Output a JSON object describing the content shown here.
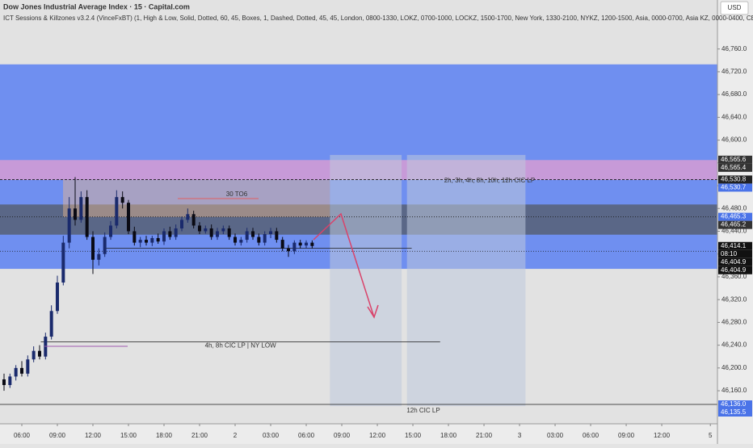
{
  "chart_data": {
    "type": "candlestick",
    "title": "Dow Jones Industrial Average Index · 15 · Capital.com",
    "subtitle": "ICT Sessions & Killzones v3.2.4 (VinceFxBT) (1, High & Low, Solid, Dotted, 60, 45, Boxes, 1, Dashed, Dotted, 45, 45, London, 0800-1330, LOKZ, 0700-1000, LOCKZ, 1500-1700, New York, 1330-2100, NYKZ, 1200-1500, Asia, 0000-0700, Asia KZ, 0000-0400, CBDR",
    "currency": "USD",
    "x": [
      -1.5,
      -1,
      -0.5,
      0,
      0.5,
      1,
      1.5,
      2,
      2.5,
      3,
      3.5,
      4,
      4.5,
      5,
      5.5,
      6,
      6.5,
      7,
      7.5,
      8,
      8.5,
      9,
      9.5,
      10,
      10.5,
      11,
      11.5,
      12,
      12.5,
      13,
      13.5,
      14,
      14.5,
      15,
      15.5,
      16,
      16.5,
      17,
      17.5,
      18,
      18.5,
      19,
      19.5,
      20,
      20.5,
      21,
      21.5,
      22,
      22.5,
      23,
      23.5,
      24,
      24.5
    ],
    "open": [
      46180,
      46170,
      46185,
      46200,
      46190,
      46215,
      46230,
      46220,
      46255,
      46300,
      46350,
      46420,
      46480,
      46460,
      46500,
      46430,
      46390,
      46400,
      46430,
      46450,
      46500,
      46490,
      46440,
      46420,
      46425,
      46420,
      46428,
      46422,
      46440,
      46430,
      46445,
      46460,
      46470,
      46450,
      46440,
      46445,
      46430,
      46440,
      46445,
      46430,
      46420,
      46425,
      46440,
      46430,
      46420,
      46435,
      46440,
      46425,
      46410,
      46405,
      46420,
      46415,
      46420
    ],
    "high": [
      46190,
      46190,
      46205,
      46212,
      46222,
      46238,
      46240,
      46262,
      46310,
      46362,
      46432,
      46500,
      46535,
      46510,
      46512,
      46440,
      46410,
      46438,
      46458,
      46512,
      46510,
      46495,
      46448,
      46430,
      46432,
      46432,
      46436,
      46445,
      46448,
      46452,
      46466,
      46480,
      46476,
      46456,
      46450,
      46452,
      46446,
      46450,
      46450,
      46436,
      46430,
      46446,
      46446,
      46436,
      46440,
      46446,
      46446,
      46430,
      46416,
      46424,
      46425,
      46424,
      46424
    ],
    "low": [
      46160,
      46165,
      46178,
      46185,
      46185,
      46210,
      46215,
      46215,
      46250,
      46295,
      46345,
      46410,
      46450,
      46455,
      46425,
      46365,
      46380,
      46395,
      46425,
      46445,
      46480,
      46435,
      46415,
      46412,
      46415,
      46414,
      46418,
      46416,
      46425,
      46425,
      46440,
      46455,
      46445,
      46435,
      46436,
      46425,
      46425,
      46435,
      46425,
      46415,
      46415,
      46420,
      46425,
      46415,
      46415,
      46428,
      46420,
      46405,
      46395,
      46400,
      46410,
      46410,
      46410
    ],
    "close": [
      46170,
      46185,
      46200,
      46190,
      46215,
      46230,
      46220,
      46255,
      46300,
      46350,
      46420,
      46480,
      46460,
      46500,
      46430,
      46390,
      46400,
      46430,
      46450,
      46500,
      46490,
      46440,
      46420,
      46425,
      46420,
      46428,
      46422,
      46440,
      46430,
      46445,
      46460,
      46470,
      46450,
      46440,
      46445,
      46430,
      46440,
      46445,
      46430,
      46420,
      46425,
      46440,
      46430,
      46420,
      46435,
      46440,
      46425,
      46410,
      46405,
      46420,
      46415,
      46420,
      46414.1
    ],
    "up_color": "#1a2a6c",
    "down_color": "#0a0a14",
    "xlim": [
      -1.84,
      58.7
    ],
    "xticks": [
      {
        "value": 0,
        "label": "06:00"
      },
      {
        "value": 3,
        "label": "09:00"
      },
      {
        "value": 6,
        "label": "12:00"
      },
      {
        "value": 9,
        "label": "15:00"
      },
      {
        "value": 12,
        "label": "18:00"
      },
      {
        "value": 15,
        "label": "21:00"
      },
      {
        "value": 18,
        "label": "2"
      },
      {
        "value": 21,
        "label": "03:00"
      },
      {
        "value": 24,
        "label": "06:00"
      },
      {
        "value": 27,
        "label": "09:00"
      },
      {
        "value": 30,
        "label": "12:00"
      },
      {
        "value": 33,
        "label": "15:00"
      },
      {
        "value": 36,
        "label": "18:00"
      },
      {
        "value": 39,
        "label": "21:00"
      },
      {
        "value": 42,
        "label": "3"
      },
      {
        "value": 45,
        "label": "03:00"
      },
      {
        "value": 48,
        "label": "06:00"
      },
      {
        "value": 51,
        "label": "09:00"
      },
      {
        "value": 54,
        "label": "12:00"
      },
      {
        "value": 58.1,
        "label": "5"
      }
    ],
    "ylim": [
      46102,
      46846
    ],
    "yticks": [
      {
        "value": 46160,
        "label": "46,160.0"
      },
      {
        "value": 46200,
        "label": "46,200.0"
      },
      {
        "value": 46240,
        "label": "46,240.0"
      },
      {
        "value": 46280,
        "label": "46,280.0"
      },
      {
        "value": 46320,
        "label": "46,320.0"
      },
      {
        "value": 46360,
        "label": "46,360.0"
      },
      {
        "value": 46400,
        "label": "46,400.0"
      },
      {
        "value": 46440,
        "label": "46,440.0"
      },
      {
        "value": 46480,
        "label": "46,480.0"
      },
      {
        "value": 46520,
        "label": "46,520.0"
      },
      {
        "value": 46560,
        "label": "46,560.0"
      },
      {
        "value": 46600,
        "label": "46,600.0"
      },
      {
        "value": 46640,
        "label": "46,640.0"
      },
      {
        "value": 46680,
        "label": "46,680.0"
      },
      {
        "value": 46720,
        "label": "46,720.0"
      },
      {
        "value": 46760,
        "label": "46,760.0"
      }
    ],
    "bands": [
      {
        "from": 46374,
        "to": 46733,
        "color": "#6f8ff0"
      },
      {
        "from": 46530,
        "to": 46565,
        "color": "#c79ad8"
      },
      {
        "from": 46434,
        "to": 46487,
        "color": "#5a6787"
      }
    ],
    "boxes": [
      {
        "x": [
          3.48,
          26.0
        ],
        "from": 46465,
        "to": 46530,
        "color": "rgba(235,185,140,0.45)"
      },
      {
        "x": [
          26.0,
          32.05
        ],
        "from": 46133,
        "to": 46574,
        "color": "rgba(190,200,220,0.55)"
      },
      {
        "x": [
          32.5,
          42.5
        ],
        "from": 46133,
        "to": 46574,
        "color": "rgba(190,200,220,0.55)"
      }
    ],
    "levels": [
      {
        "value": 46530.8,
        "style": "dashed"
      },
      {
        "value": 46465.2,
        "style": "dotted"
      },
      {
        "value": 46404.9,
        "style": "dotted"
      },
      {
        "value": 46136,
        "style": "solid"
      },
      {
        "value": 46410,
        "style": "solid",
        "x": [
          6.9,
          32.9
        ]
      },
      {
        "value": 46246,
        "style": "solid",
        "x": [
          1.6,
          35.3
        ],
        "label": "4h, 8h CIC LP | NY LOW"
      }
    ],
    "annotations": [
      "30 TO6",
      "2h, 3h, 4h, 8h, 10h, 12h CIC LP",
      "12h CIC LP"
    ],
    "price_labels": [
      {
        "value": 46565.6,
        "label": "46,565.6",
        "color": "#333"
      },
      {
        "value": 46565.4,
        "label": "46,565.4",
        "color": "#333"
      },
      {
        "value": 46530.8,
        "label": "46,530.8",
        "color": "#222"
      },
      {
        "value": 46530.7,
        "label": "46,530.7",
        "color": "#4a73e8"
      },
      {
        "value": 46465.3,
        "label": "46,465.3",
        "color": "#4a73e8"
      },
      {
        "value": 46465.2,
        "label": "46,465.2",
        "color": "#333"
      },
      {
        "value": 46414.1,
        "label": "46,414.1",
        "color": "#111"
      },
      {
        "value": 46404.9,
        "label": "46,404.9",
        "color": "#111"
      },
      {
        "value": 46404.9,
        "label": "46,404.9",
        "color": "#111"
      },
      {
        "value": 46136.0,
        "label": "46,136.0",
        "color": "#4a73e8"
      },
      {
        "value": 46135.5,
        "label": "46,135.5",
        "color": "#4a73e8"
      }
    ],
    "countdown": "08:10"
  }
}
